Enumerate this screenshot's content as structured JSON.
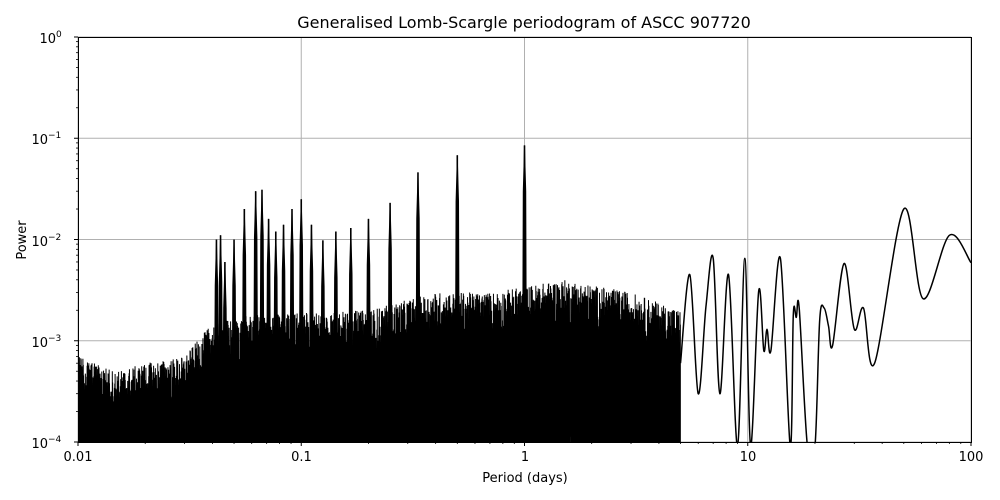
{
  "chart_data": {
    "type": "line",
    "title": "Generalised Lomb-Scargle periodogram of ASCC 907720",
    "xlabel": "Period (days)",
    "ylabel": "Power",
    "xscale": "log",
    "yscale": "log",
    "xlim": [
      0.01,
      100
    ],
    "ylim": [
      0.0001,
      1
    ],
    "grid": true,
    "legend": null,
    "x_ticks": [
      "0.01",
      "0.1",
      "1",
      "10",
      "100"
    ],
    "y_ticks": [
      {
        "base": "10",
        "exp": "0"
      },
      {
        "base": "10",
        "exp": "−1"
      },
      {
        "base": "10",
        "exp": "−2"
      },
      {
        "base": "10",
        "exp": "−3"
      },
      {
        "base": "10",
        "exp": "−4"
      }
    ],
    "line_color": "#000000",
    "grid_color": "#b0b0b0",
    "noise_floor_envelope": [
      {
        "period": 0.01,
        "power": 0.0007
      },
      {
        "period": 0.015,
        "power": 0.0005
      },
      {
        "period": 0.02,
        "power": 0.0006
      },
      {
        "period": 0.03,
        "power": 0.0007
      },
      {
        "period": 0.04,
        "power": 0.0015
      },
      {
        "period": 0.06,
        "power": 0.0018
      },
      {
        "period": 0.1,
        "power": 0.0019
      },
      {
        "period": 0.2,
        "power": 0.002
      },
      {
        "period": 0.4,
        "power": 0.003
      },
      {
        "period": 0.7,
        "power": 0.003
      },
      {
        "period": 1.5,
        "power": 0.004
      },
      {
        "period": 3.0,
        "power": 0.003
      },
      {
        "period": 5.0,
        "power": 0.002
      }
    ],
    "harmonic_peaks": [
      {
        "period": 0.0417,
        "power": 0.01
      },
      {
        "period": 0.0435,
        "power": 0.011
      },
      {
        "period": 0.0455,
        "power": 0.006
      },
      {
        "period": 0.05,
        "power": 0.01
      },
      {
        "period": 0.0556,
        "power": 0.02
      },
      {
        "period": 0.0625,
        "power": 0.03
      },
      {
        "period": 0.0667,
        "power": 0.031
      },
      {
        "period": 0.0714,
        "power": 0.016
      },
      {
        "period": 0.0769,
        "power": 0.012
      },
      {
        "period": 0.0833,
        "power": 0.014
      },
      {
        "period": 0.0909,
        "power": 0.02
      },
      {
        "period": 0.1,
        "power": 0.025
      },
      {
        "period": 0.1111,
        "power": 0.014
      },
      {
        "period": 0.125,
        "power": 0.0098
      },
      {
        "period": 0.1429,
        "power": 0.012
      },
      {
        "period": 0.1667,
        "power": 0.013
      },
      {
        "period": 0.2,
        "power": 0.016
      },
      {
        "period": 0.25,
        "power": 0.023
      },
      {
        "period": 0.3333,
        "power": 0.046
      },
      {
        "period": 0.5,
        "power": 0.068
      },
      {
        "period": 1.0,
        "power": 0.085
      }
    ],
    "smooth_segment": [
      {
        "period": 5.0,
        "power": 0.0006
      },
      {
        "period": 5.5,
        "power": 0.0045
      },
      {
        "period": 6.0,
        "power": 0.0003
      },
      {
        "period": 6.5,
        "power": 0.0022
      },
      {
        "period": 7.0,
        "power": 0.0065
      },
      {
        "period": 7.5,
        "power": 0.0003
      },
      {
        "period": 8.2,
        "power": 0.0045
      },
      {
        "period": 9.0,
        "power": 0.0001
      },
      {
        "period": 9.7,
        "power": 0.0065
      },
      {
        "period": 10.3,
        "power": 0.0001
      },
      {
        "period": 11.2,
        "power": 0.0031
      },
      {
        "period": 11.8,
        "power": 0.0008
      },
      {
        "period": 12.2,
        "power": 0.0013
      },
      {
        "period": 12.7,
        "power": 0.0008
      },
      {
        "period": 14.0,
        "power": 0.0065
      },
      {
        "period": 15.5,
        "power": 0.0001
      },
      {
        "period": 16.0,
        "power": 0.0018
      },
      {
        "period": 16.5,
        "power": 0.0017
      },
      {
        "period": 17.0,
        "power": 0.0021
      },
      {
        "period": 18.5,
        "power": 0.0001
      },
      {
        "period": 20.0,
        "power": 0.0001
      },
      {
        "period": 21.0,
        "power": 0.0016
      },
      {
        "period": 22.0,
        "power": 0.0021
      },
      {
        "period": 23.0,
        "power": 0.0014
      },
      {
        "period": 24.0,
        "power": 0.0009
      },
      {
        "period": 27.0,
        "power": 0.0058
      },
      {
        "period": 30.0,
        "power": 0.0013
      },
      {
        "period": 33.0,
        "power": 0.0021
      },
      {
        "period": 37.0,
        "power": 0.0006
      },
      {
        "period": 50.0,
        "power": 0.02
      },
      {
        "period": 61.0,
        "power": 0.0026
      },
      {
        "period": 80.0,
        "power": 0.011
      },
      {
        "period": 100.0,
        "power": 0.0059
      }
    ]
  }
}
